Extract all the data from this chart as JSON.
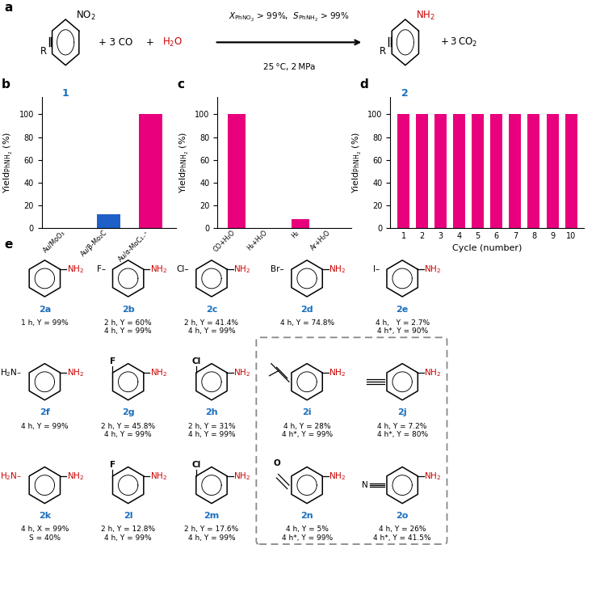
{
  "bar_color": "#E8007D",
  "blue_bar_color": "#1F5FC8",
  "bar_b_cats": [
    "Au/MoO₃",
    "Au/β-Mo₂C",
    "Au/α-MoC₁₋ˣ"
  ],
  "bar_b_vals": [
    0,
    12,
    100
  ],
  "bar_c_cats": [
    "CO+H₂O",
    "H₂+H₂O",
    "H₂",
    "Ar+H₂O"
  ],
  "bar_c_vals": [
    100,
    0,
    8,
    0
  ],
  "bar_d_vals": [
    100,
    100,
    100,
    100,
    100,
    100,
    100,
    100,
    100,
    100
  ],
  "yticks": [
    0,
    20,
    40,
    60,
    80,
    100
  ],
  "ylabel": "Yield$_{\\mathrm{PhNH_2}}$ (%)",
  "xlabel_d": "Cycle (number)",
  "panel_fs": 11,
  "tick_fs": 7,
  "axis_fs": 8,
  "sfs": 7.5,
  "lfs": 8,
  "nfs": 6.5,
  "bg": "#FFFFFF",
  "magenta": "#E8007D",
  "blue": "#1A6FBF",
  "red": "#CC0000",
  "black": "#000000"
}
